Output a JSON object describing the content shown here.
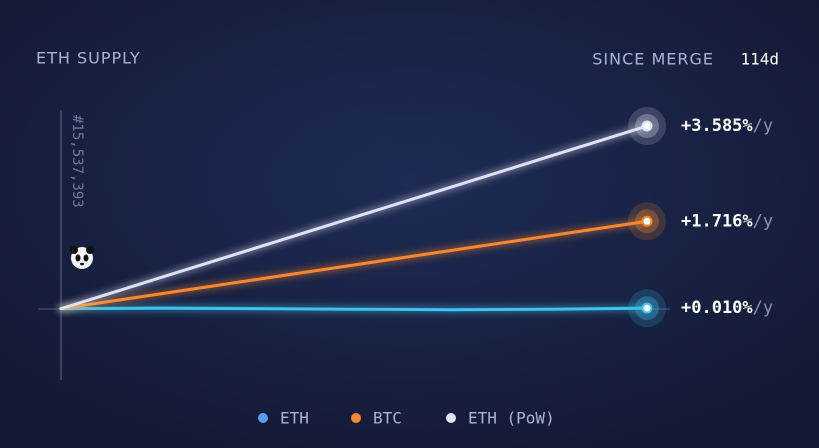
{
  "chart_data": {
    "type": "line",
    "title": "ETH SUPPLY",
    "since_label": "SINCE MERGE",
    "since_value": "114d",
    "block_label": "#15,537,393",
    "x": [
      0,
      19,
      38,
      57,
      76,
      95,
      114
    ],
    "xlim": [
      0,
      114
    ],
    "ylim": [
      -1.4,
      3.9
    ],
    "series": [
      {
        "name": "ETH",
        "color": "#3fc3ee",
        "legend_color": "#5b9cf2",
        "values": [
          0,
          0.01,
          0.0,
          -0.01,
          -0.02,
          -0.01,
          0.01
        ],
        "end_label": "+0.010%",
        "unit": "/y"
      },
      {
        "name": "BTC",
        "color": "#f7882f",
        "legend_color": "#f7882f",
        "values": [
          0,
          0.286,
          0.572,
          0.858,
          1.144,
          1.43,
          1.716
        ],
        "end_label": "+1.716%",
        "unit": "/y"
      },
      {
        "name": "ETH (PoW)",
        "color": "#dfe2f5",
        "legend_color": "#dfe2f5",
        "values": [
          0,
          0.5975,
          1.195,
          1.7925,
          2.39,
          2.9875,
          3.585
        ],
        "end_label": "+3.585%",
        "unit": "/y"
      }
    ]
  }
}
